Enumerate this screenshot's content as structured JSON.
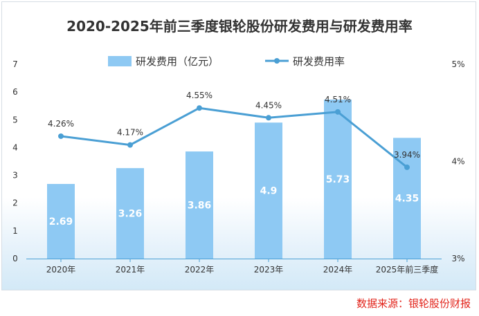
{
  "chart_data": {
    "type": "bar+line",
    "title": "2020-2025年前三季度银轮股份研发费用与研发费用率",
    "categories": [
      "2020年",
      "2021年",
      "2022年",
      "2023年",
      "2024年",
      "2025年前三季度"
    ],
    "series": [
      {
        "name": "研发费用（亿元）",
        "type": "bar",
        "axis": "left",
        "values": [
          2.69,
          3.26,
          3.86,
          4.9,
          5.73,
          4.35
        ],
        "labels": [
          "2.69",
          "3.26",
          "3.86",
          "4.9",
          "5.73",
          "4.35"
        ],
        "color": "#8ec9f3"
      },
      {
        "name": "研发费用率",
        "type": "line",
        "axis": "right",
        "values": [
          4.26,
          4.17,
          4.55,
          4.45,
          4.51,
          3.94
        ],
        "labels": [
          "4.26%",
          "4.17%",
          "4.55%",
          "4.45%",
          "4.51%",
          "3.94%"
        ],
        "color": "#4a9fd4"
      }
    ],
    "left_axis": {
      "min": 0,
      "max": 7,
      "ticks": [
        "0",
        "1",
        "2",
        "3",
        "4",
        "5",
        "6",
        "7"
      ]
    },
    "right_axis": {
      "min": 3,
      "max": 5,
      "ticks": [
        "3%",
        "4%",
        "5%"
      ]
    },
    "legend_position": "top"
  },
  "source_text": "数据来源：银轮股份财报"
}
